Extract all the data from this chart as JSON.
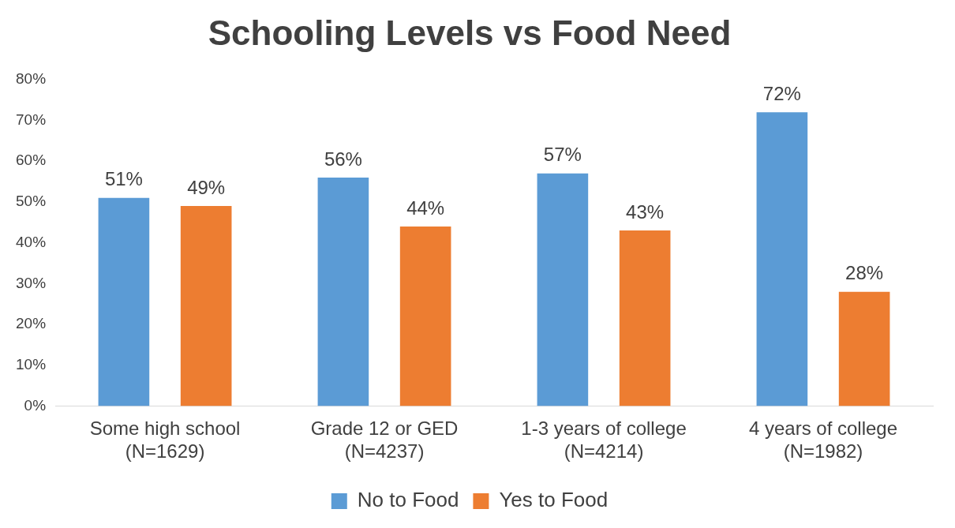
{
  "chart_data": {
    "type": "bar",
    "title": "Schooling Levels vs Food Need",
    "categories": [
      "Some high school\n(N=1629)",
      "Grade 12 or GED\n(N=4237)",
      "1-3 years of college\n(N=4214)",
      "4 years of college\n(N=1982)"
    ],
    "series": [
      {
        "name": "No to Food",
        "color": "#5b9bd5",
        "values": [
          51,
          56,
          57,
          72
        ],
        "value_labels": [
          "51%",
          "56%",
          "57%",
          "72%"
        ]
      },
      {
        "name": "Yes to Food",
        "color": "#ed7d31",
        "values": [
          49,
          44,
          43,
          28
        ],
        "value_labels": [
          "49%",
          "44%",
          "43%",
          "28%"
        ]
      }
    ],
    "ylim": [
      0,
      80
    ],
    "yticks": [
      {
        "value": 0,
        "label": "0%"
      },
      {
        "value": 10,
        "label": "10%"
      },
      {
        "value": 20,
        "label": "20%"
      },
      {
        "value": 30,
        "label": "30%"
      },
      {
        "value": 40,
        "label": "40%"
      },
      {
        "value": 50,
        "label": "50%"
      },
      {
        "value": 60,
        "label": "60%"
      },
      {
        "value": 70,
        "label": "70%"
      },
      {
        "value": 80,
        "label": "80%"
      }
    ],
    "grid": false,
    "legend": "bottom"
  }
}
